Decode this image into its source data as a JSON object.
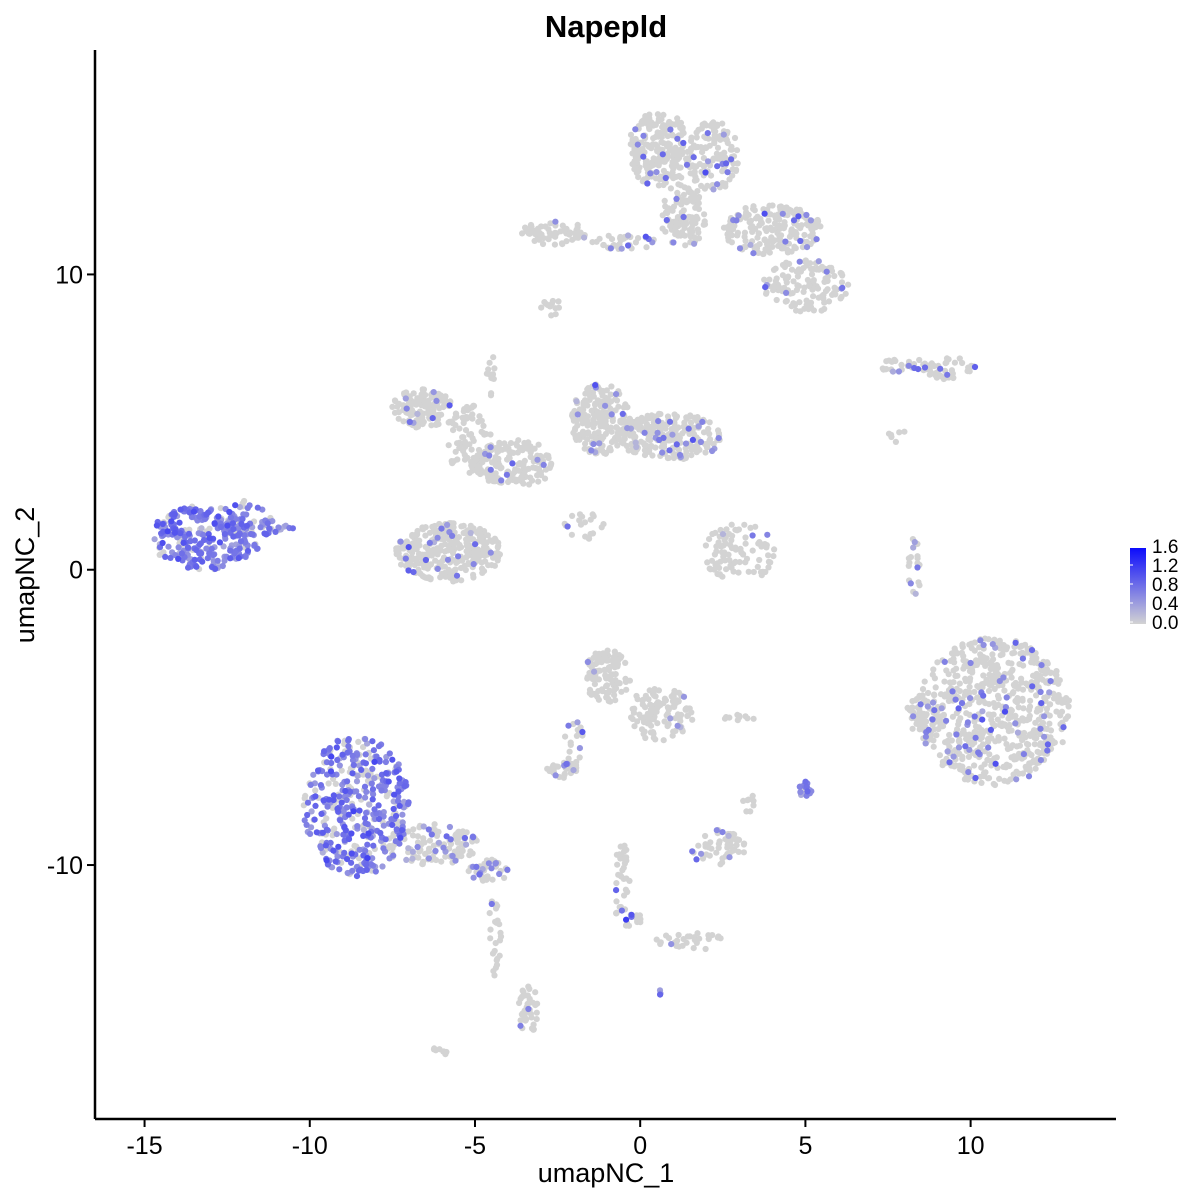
{
  "chart_data": {
    "type": "scatter",
    "title": "Napepld",
    "xlabel": "umapNC_1",
    "ylabel": "umapNC_2",
    "xlim": [
      -16.5,
      14.4
    ],
    "ylim": [
      -18.6,
      17.6
    ],
    "xticks": [
      -15,
      -10,
      -5,
      0,
      5,
      10
    ],
    "xtick_labels": [
      "-15",
      "-10",
      "-5",
      "0",
      "5",
      "10"
    ],
    "yticks": [
      -10,
      0,
      10
    ],
    "ytick_labels": [
      "-10",
      "0",
      "10"
    ],
    "grid": false,
    "legend": {
      "position": "right",
      "type": "colorbar",
      "labels": [
        "1.6",
        "1.2",
        "0.8",
        "0.4",
        "0.0"
      ],
      "values": [
        1.6,
        1.2,
        0.8,
        0.4,
        0.0
      ],
      "low_color": "#d3d3d3",
      "high_color": "#0000ff",
      "max": 1.7
    },
    "clusters": [
      {
        "cx": -13.2,
        "cy": 1.1,
        "rx": 1.6,
        "ry": 1.1,
        "n": 260,
        "expr_frac": 0.85,
        "expr_mean": 0.7
      },
      {
        "cx": -11.9,
        "cy": 1.5,
        "rx": 0.8,
        "ry": 0.9,
        "n": 50,
        "expr_frac": 0.8,
        "expr_mean": 0.6
      },
      {
        "cx": -11.0,
        "cy": 1.4,
        "rx": 0.5,
        "ry": 0.2,
        "n": 12,
        "expr_frac": 0.7,
        "expr_mean": 0.6
      },
      {
        "cx": -8.6,
        "cy": -8.0,
        "rx": 1.6,
        "ry": 2.4,
        "n": 420,
        "expr_frac": 0.75,
        "expr_mean": 0.7
      },
      {
        "cx": -6.3,
        "cy": -9.3,
        "rx": 1.4,
        "ry": 0.7,
        "n": 120,
        "expr_frac": 0.25,
        "expr_mean": 0.5
      },
      {
        "cx": -4.6,
        "cy": -10.2,
        "rx": 0.6,
        "ry": 0.4,
        "n": 40,
        "expr_frac": 0.4,
        "expr_mean": 0.6
      },
      {
        "cx": -4.4,
        "cy": -12.5,
        "rx": 0.2,
        "ry": 1.5,
        "n": 25,
        "expr_frac": 0.02,
        "expr_mean": 0.5
      },
      {
        "cx": -3.4,
        "cy": -14.9,
        "rx": 0.3,
        "ry": 0.9,
        "n": 40,
        "expr_frac": 0.1,
        "expr_mean": 0.6
      },
      {
        "cx": -5.8,
        "cy": 0.6,
        "rx": 1.6,
        "ry": 1.0,
        "n": 340,
        "expr_frac": 0.05,
        "expr_mean": 0.6
      },
      {
        "cx": -6.6,
        "cy": 5.5,
        "rx": 0.9,
        "ry": 0.7,
        "n": 130,
        "expr_frac": 0.05,
        "expr_mean": 0.6
      },
      {
        "cx": -5.2,
        "cy": 4.4,
        "rx": 0.7,
        "ry": 1.2,
        "n": 80,
        "expr_frac": 0.05,
        "expr_mean": 0.6
      },
      {
        "cx": -3.8,
        "cy": 3.6,
        "rx": 1.2,
        "ry": 0.8,
        "n": 160,
        "expr_frac": 0.05,
        "expr_mean": 0.6
      },
      {
        "cx": -1.2,
        "cy": 5.1,
        "rx": 0.9,
        "ry": 1.2,
        "n": 210,
        "expr_frac": 0.05,
        "expr_mean": 0.6
      },
      {
        "cx": 0.9,
        "cy": 4.5,
        "rx": 1.6,
        "ry": 0.8,
        "n": 260,
        "expr_frac": 0.05,
        "expr_mean": 0.6
      },
      {
        "cx": -4.5,
        "cy": 6.5,
        "rx": 0.15,
        "ry": 0.8,
        "n": 12,
        "expr_frac": 0.1,
        "expr_mean": 0.6
      },
      {
        "cx": -1.7,
        "cy": 1.5,
        "rx": 0.6,
        "ry": 0.5,
        "n": 20,
        "expr_frac": 0.1,
        "expr_mean": 0.6
      },
      {
        "cx": 3.0,
        "cy": 0.6,
        "rx": 1.1,
        "ry": 1.0,
        "n": 90,
        "expr_frac": 0.03,
        "expr_mean": 0.6
      },
      {
        "cx": 0.6,
        "cy": 14.2,
        "rx": 1.0,
        "ry": 1.3,
        "n": 230,
        "expr_frac": 0.06,
        "expr_mean": 0.7
      },
      {
        "cx": 2.2,
        "cy": 14.0,
        "rx": 0.8,
        "ry": 1.2,
        "n": 130,
        "expr_frac": 0.06,
        "expr_mean": 0.7
      },
      {
        "cx": 1.3,
        "cy": 12.0,
        "rx": 0.7,
        "ry": 1.1,
        "n": 110,
        "expr_frac": 0.06,
        "expr_mean": 0.7
      },
      {
        "cx": 4.0,
        "cy": 11.5,
        "rx": 1.5,
        "ry": 0.9,
        "n": 200,
        "expr_frac": 0.06,
        "expr_mean": 0.7
      },
      {
        "cx": 5.0,
        "cy": 9.6,
        "rx": 1.3,
        "ry": 0.9,
        "n": 130,
        "expr_frac": 0.06,
        "expr_mean": 0.7
      },
      {
        "cx": -2.6,
        "cy": 11.4,
        "rx": 1.0,
        "ry": 0.4,
        "n": 60,
        "expr_frac": 0.05,
        "expr_mean": 0.6
      },
      {
        "cx": -0.5,
        "cy": 11.1,
        "rx": 1.0,
        "ry": 0.25,
        "n": 40,
        "expr_frac": 0.08,
        "expr_mean": 0.6
      },
      {
        "cx": -2.7,
        "cy": 8.9,
        "rx": 0.3,
        "ry": 0.3,
        "n": 12,
        "expr_frac": 0.0,
        "expr_mean": 0.5
      },
      {
        "cx": 8.0,
        "cy": 6.9,
        "rx": 0.7,
        "ry": 0.3,
        "n": 25,
        "expr_frac": 0.15,
        "expr_mean": 0.6
      },
      {
        "cx": 9.4,
        "cy": 6.8,
        "rx": 0.8,
        "ry": 0.4,
        "n": 40,
        "expr_frac": 0.1,
        "expr_mean": 0.6
      },
      {
        "cx": 7.8,
        "cy": 4.6,
        "rx": 0.3,
        "ry": 0.3,
        "n": 6,
        "expr_frac": 0.0,
        "expr_mean": 0.5
      },
      {
        "cx": 8.3,
        "cy": 0.1,
        "rx": 0.2,
        "ry": 1.0,
        "n": 20,
        "expr_frac": 0.1,
        "expr_mean": 0.6
      },
      {
        "cx": 10.7,
        "cy": -4.8,
        "rx": 2.3,
        "ry": 2.5,
        "n": 650,
        "expr_frac": 0.08,
        "expr_mean": 0.7
      },
      {
        "cx": 8.6,
        "cy": -4.9,
        "rx": 0.6,
        "ry": 0.7,
        "n": 60,
        "expr_frac": 0.1,
        "expr_mean": 0.6
      },
      {
        "cx": -1.0,
        "cy": -3.6,
        "rx": 0.7,
        "ry": 0.9,
        "n": 110,
        "expr_frac": 0.03,
        "expr_mean": 0.6
      },
      {
        "cx": 0.6,
        "cy": -4.9,
        "rx": 1.0,
        "ry": 0.9,
        "n": 110,
        "expr_frac": 0.04,
        "expr_mean": 0.6
      },
      {
        "cx": -2.0,
        "cy": -5.9,
        "rx": 0.3,
        "ry": 0.8,
        "n": 20,
        "expr_frac": 0.05,
        "expr_mean": 0.6
      },
      {
        "cx": -2.4,
        "cy": -6.8,
        "rx": 0.5,
        "ry": 0.3,
        "n": 30,
        "expr_frac": 0.15,
        "expr_mean": 0.6
      },
      {
        "cx": 5.0,
        "cy": -7.4,
        "rx": 0.2,
        "ry": 0.3,
        "n": 18,
        "expr_frac": 0.8,
        "expr_mean": 0.6
      },
      {
        "cx": 3.0,
        "cy": -5.0,
        "rx": 0.5,
        "ry": 0.1,
        "n": 10,
        "expr_frac": 0.0,
        "expr_mean": 0.5
      },
      {
        "cx": 2.3,
        "cy": -9.4,
        "rx": 0.9,
        "ry": 0.6,
        "n": 55,
        "expr_frac": 0.15,
        "expr_mean": 0.6
      },
      {
        "cx": 3.3,
        "cy": -8.0,
        "rx": 0.2,
        "ry": 0.5,
        "n": 8,
        "expr_frac": 0.2,
        "expr_mean": 0.6
      },
      {
        "cx": -0.6,
        "cy": -10.5,
        "rx": 0.3,
        "ry": 1.3,
        "n": 35,
        "expr_frac": 0.05,
        "expr_mean": 0.6
      },
      {
        "cx": -0.2,
        "cy": -11.9,
        "rx": 0.3,
        "ry": 0.3,
        "n": 15,
        "expr_frac": 0.3,
        "expr_mean": 0.8
      },
      {
        "cx": 1.5,
        "cy": -12.6,
        "rx": 1.1,
        "ry": 0.3,
        "n": 30,
        "expr_frac": 0.08,
        "expr_mean": 0.6
      },
      {
        "cx": -6.0,
        "cy": -16.3,
        "rx": 0.3,
        "ry": 0.15,
        "n": 8,
        "expr_frac": 0.0,
        "expr_mean": 0.5
      },
      {
        "cx": 0.6,
        "cy": -14.3,
        "rx": 0.1,
        "ry": 0.1,
        "n": 3,
        "expr_frac": 1.0,
        "expr_mean": 0.6
      }
    ]
  }
}
